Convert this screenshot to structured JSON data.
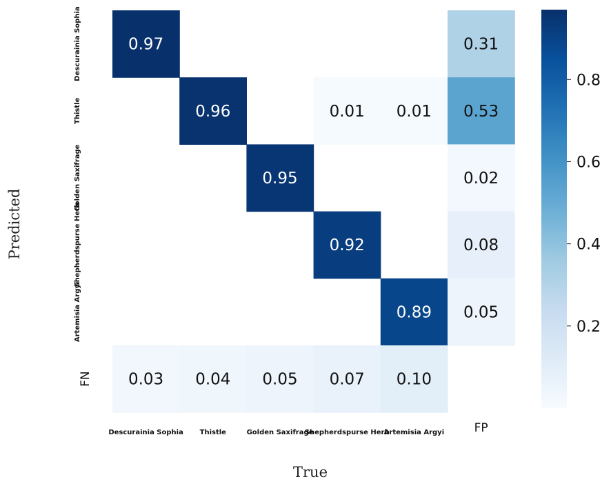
{
  "chart_data": {
    "type": "heatmap",
    "xlabel": "True",
    "ylabel": "Predicted",
    "x_categories": [
      "Descurainia Sophia",
      "Thistle",
      "Golden Saxifrage",
      "Shepherdspurse Herb",
      "Artemisia Argyi",
      "FP"
    ],
    "y_categories": [
      "Descurainia Sophia",
      "Thistle",
      "Golden Saxifrage",
      "Shepherdspurse Herb",
      "Artemisia Argyi",
      "FN"
    ],
    "values": [
      [
        0.97,
        null,
        null,
        null,
        null,
        0.31
      ],
      [
        null,
        0.96,
        null,
        0.01,
        0.01,
        0.53
      ],
      [
        null,
        null,
        0.95,
        null,
        null,
        0.02
      ],
      [
        null,
        null,
        null,
        0.92,
        null,
        0.08
      ],
      [
        null,
        null,
        null,
        null,
        0.89,
        0.05
      ],
      [
        0.03,
        0.04,
        0.05,
        0.07,
        0.1,
        null
      ]
    ],
    "colormap": "Blues",
    "vmin": 0.0,
    "vmax": 0.97,
    "colorbar_ticks": [
      0.2,
      0.4,
      0.6,
      0.8
    ],
    "colorbar_tick_labels": [
      "0.2",
      "0.4",
      "0.6",
      "0.8"
    ]
  }
}
